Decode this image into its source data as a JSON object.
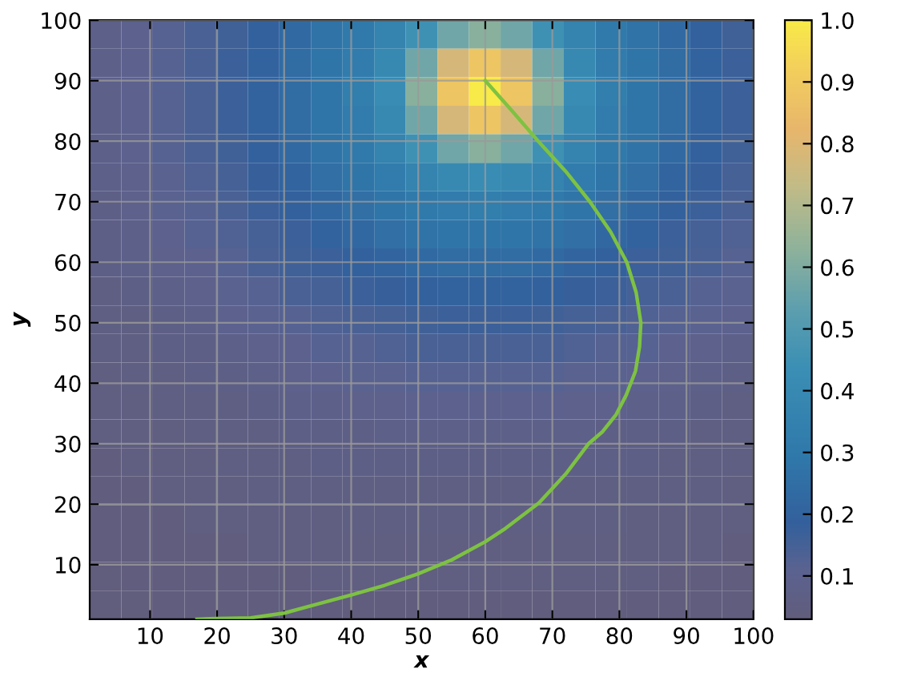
{
  "chart_data": {
    "type": "heatmap",
    "xlabel": "x",
    "ylabel": "y",
    "cells": [
      [
        0.08,
        0.1,
        0.12,
        0.14,
        0.16,
        0.19,
        0.23,
        0.27,
        0.31,
        0.36,
        0.45,
        0.57,
        0.62,
        0.57,
        0.45,
        0.36,
        0.31,
        0.27,
        0.23,
        0.19,
        0.16
      ],
      [
        0.08,
        0.1,
        0.12,
        0.14,
        0.17,
        0.2,
        0.24,
        0.28,
        0.32,
        0.4,
        0.57,
        0.78,
        0.88,
        0.78,
        0.57,
        0.4,
        0.32,
        0.28,
        0.24,
        0.2,
        0.17
      ],
      [
        0.08,
        0.1,
        0.12,
        0.14,
        0.17,
        0.2,
        0.24,
        0.28,
        0.33,
        0.42,
        0.62,
        0.88,
        1.0,
        0.88,
        0.62,
        0.42,
        0.33,
        0.28,
        0.24,
        0.2,
        0.17
      ],
      [
        0.08,
        0.1,
        0.12,
        0.14,
        0.17,
        0.2,
        0.24,
        0.28,
        0.32,
        0.4,
        0.57,
        0.78,
        0.88,
        0.78,
        0.57,
        0.4,
        0.32,
        0.28,
        0.24,
        0.2,
        0.17
      ],
      [
        0.08,
        0.1,
        0.12,
        0.14,
        0.16,
        0.19,
        0.23,
        0.27,
        0.31,
        0.36,
        0.45,
        0.57,
        0.62,
        0.57,
        0.45,
        0.36,
        0.31,
        0.27,
        0.23,
        0.19,
        0.16
      ],
      [
        0.08,
        0.09,
        0.11,
        0.13,
        0.15,
        0.18,
        0.21,
        0.25,
        0.28,
        0.32,
        0.36,
        0.4,
        0.42,
        0.4,
        0.36,
        0.32,
        0.28,
        0.25,
        0.21,
        0.18,
        0.15
      ],
      [
        0.07,
        0.09,
        0.11,
        0.12,
        0.14,
        0.17,
        0.19,
        0.22,
        0.25,
        0.28,
        0.31,
        0.32,
        0.33,
        0.32,
        0.31,
        0.28,
        0.25,
        0.22,
        0.19,
        0.17,
        0.14
      ],
      [
        0.07,
        0.08,
        0.1,
        0.12,
        0.13,
        0.15,
        0.17,
        0.2,
        0.22,
        0.25,
        0.27,
        0.28,
        0.28,
        0.28,
        0.27,
        0.25,
        0.22,
        0.2,
        0.17,
        0.15,
        0.13
      ],
      [
        0.07,
        0.08,
        0.09,
        0.1,
        0.12,
        0.14,
        0.16,
        0.17,
        0.19,
        0.21,
        0.23,
        0.24,
        0.24,
        0.24,
        0.23,
        0.21,
        0.19,
        0.17,
        0.16,
        0.14,
        0.12
      ],
      [
        0.06,
        0.07,
        0.08,
        0.09,
        0.11,
        0.12,
        0.14,
        0.15,
        0.17,
        0.18,
        0.19,
        0.2,
        0.2,
        0.2,
        0.19,
        0.18,
        0.17,
        0.15,
        0.14,
        0.12,
        0.11
      ],
      [
        0.06,
        0.06,
        0.07,
        0.08,
        0.1,
        0.11,
        0.12,
        0.13,
        0.14,
        0.15,
        0.16,
        0.17,
        0.17,
        0.17,
        0.16,
        0.15,
        0.14,
        0.13,
        0.12,
        0.11,
        0.1
      ],
      [
        0.06,
        0.06,
        0.07,
        0.07,
        0.08,
        0.09,
        0.1,
        0.12,
        0.12,
        0.13,
        0.14,
        0.14,
        0.14,
        0.14,
        0.14,
        0.13,
        0.12,
        0.12,
        0.1,
        0.09,
        0.08
      ],
      [
        0.05,
        0.06,
        0.06,
        0.07,
        0.07,
        0.08,
        0.09,
        0.1,
        0.11,
        0.11,
        0.12,
        0.12,
        0.12,
        0.12,
        0.12,
        0.11,
        0.11,
        0.1,
        0.09,
        0.08,
        0.07
      ],
      [
        0.05,
        0.05,
        0.06,
        0.06,
        0.06,
        0.07,
        0.08,
        0.08,
        0.09,
        0.09,
        0.1,
        0.1,
        0.1,
        0.1,
        0.1,
        0.09,
        0.09,
        0.08,
        0.08,
        0.07,
        0.06
      ],
      [
        0.05,
        0.05,
        0.05,
        0.06,
        0.06,
        0.06,
        0.07,
        0.07,
        0.07,
        0.08,
        0.08,
        0.08,
        0.08,
        0.08,
        0.08,
        0.08,
        0.07,
        0.07,
        0.07,
        0.06,
        0.06
      ],
      [
        0.04,
        0.05,
        0.05,
        0.05,
        0.06,
        0.06,
        0.06,
        0.07,
        0.07,
        0.07,
        0.07,
        0.07,
        0.07,
        0.07,
        0.07,
        0.07,
        0.07,
        0.07,
        0.06,
        0.06,
        0.06
      ],
      [
        0.04,
        0.04,
        0.05,
        0.05,
        0.05,
        0.06,
        0.06,
        0.06,
        0.06,
        0.06,
        0.06,
        0.06,
        0.06,
        0.06,
        0.06,
        0.06,
        0.06,
        0.06,
        0.06,
        0.06,
        0.05
      ],
      [
        0.04,
        0.04,
        0.04,
        0.05,
        0.05,
        0.05,
        0.05,
        0.05,
        0.06,
        0.06,
        0.06,
        0.06,
        0.06,
        0.06,
        0.06,
        0.06,
        0.06,
        0.05,
        0.05,
        0.05,
        0.05
      ],
      [
        0.04,
        0.04,
        0.04,
        0.04,
        0.04,
        0.05,
        0.05,
        0.05,
        0.05,
        0.05,
        0.05,
        0.05,
        0.05,
        0.05,
        0.05,
        0.05,
        0.05,
        0.05,
        0.05,
        0.05,
        0.04
      ],
      [
        0.03,
        0.04,
        0.04,
        0.04,
        0.04,
        0.04,
        0.04,
        0.05,
        0.05,
        0.05,
        0.05,
        0.05,
        0.05,
        0.05,
        0.05,
        0.05,
        0.05,
        0.05,
        0.04,
        0.04,
        0.04
      ],
      [
        0.03,
        0.03,
        0.04,
        0.04,
        0.04,
        0.04,
        0.04,
        0.04,
        0.04,
        0.04,
        0.04,
        0.04,
        0.04,
        0.04,
        0.04,
        0.04,
        0.04,
        0.04,
        0.04,
        0.04,
        0.04
      ]
    ],
    "clim": [
      0.03,
      1.0
    ],
    "cticks": [
      0.1,
      0.2,
      0.3,
      0.4,
      0.5,
      0.6,
      0.7,
      0.8,
      0.9,
      {
        "value": 1.0,
        "label": "1.0"
      }
    ],
    "series": [
      {
        "type": "line",
        "color": "#7dc242",
        "x": [
          60,
          64,
          67.9,
          72,
          75.6,
          78.7,
          81.1,
          82.5,
          83.2,
          83,
          82.4,
          81,
          79.5,
          77.5,
          75.4,
          72,
          68,
          63,
          60,
          55,
          50,
          45,
          40,
          35,
          30,
          25,
          20,
          17
        ],
        "values": [
          90,
          85,
          80,
          75,
          70,
          65,
          60,
          55,
          50,
          46,
          42,
          38,
          34.8,
          32,
          30,
          25,
          20.2,
          16,
          13.8,
          10.8,
          8.5,
          6.6,
          5,
          3.5,
          2,
          1.2,
          1.1,
          1
        ]
      }
    ],
    "xlim": [
      1,
      100
    ],
    "ylim": [
      1,
      100
    ],
    "xticks": [
      10,
      20,
      30,
      40,
      50,
      60,
      70,
      80,
      90,
      100
    ],
    "yticks": [
      10,
      20,
      30,
      40,
      50,
      60,
      70,
      80,
      90,
      100
    ],
    "grid": true
  }
}
